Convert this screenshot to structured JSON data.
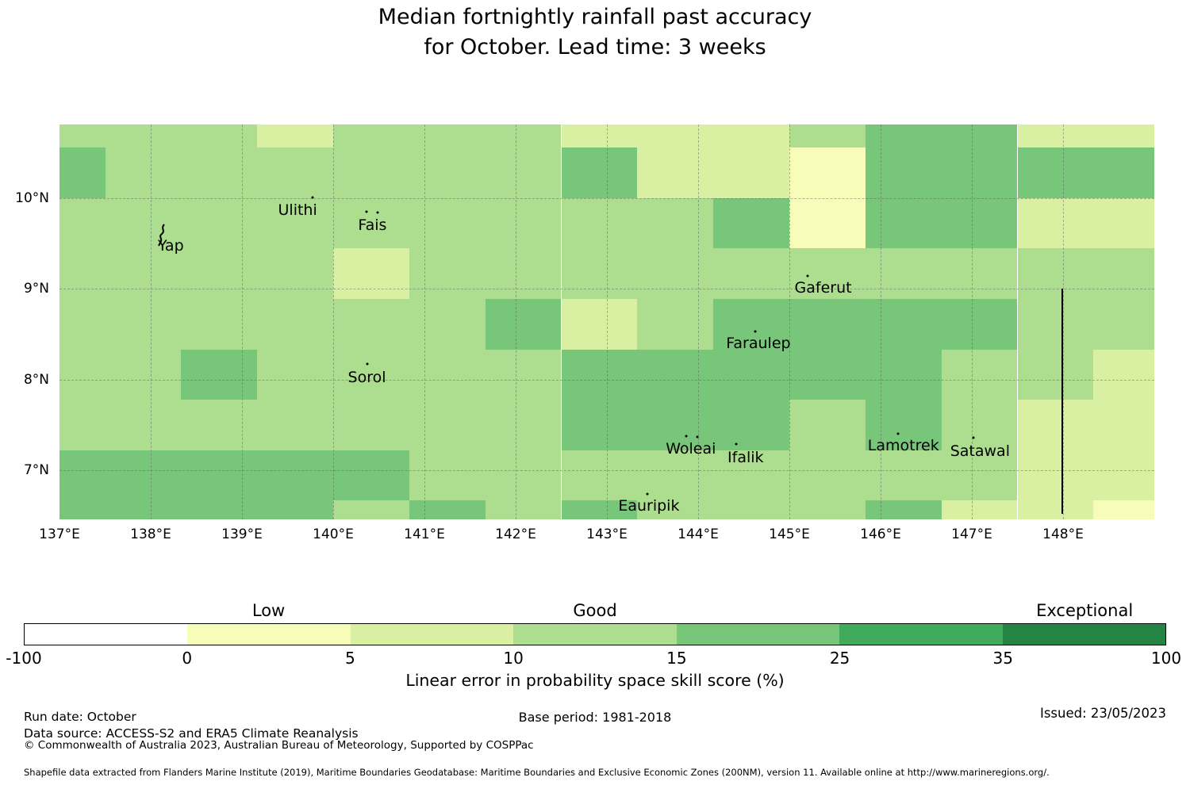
{
  "title": {
    "line1": "Median fortnightly rainfall past accuracy",
    "line2": "for October. Lead time: 3 weeks"
  },
  "chart_data": {
    "type": "heatmap",
    "title": "Median fortnightly rainfall past accuracy for October. Lead time: 3 weeks",
    "region": "Yap / Federated States of Micronesia area",
    "lon_range": [
      137.0,
      149.0
    ],
    "lat_range": [
      10.81,
      6.46
    ],
    "lon_edges": [
      137.0,
      137.5,
      138.333,
      139.167,
      140.0,
      140.833,
      141.667,
      142.5,
      143.333,
      144.167,
      145.0,
      145.833,
      146.667,
      147.5,
      148.333,
      149.0
    ],
    "lat_edges": [
      10.81,
      10.556,
      10.0,
      9.444,
      8.889,
      8.333,
      7.778,
      7.222,
      6.667,
      6.46
    ],
    "bins": {
      "Y": "0-5",
      "P": "5-10",
      "L": "10-15",
      "M": "15-25"
    },
    "bin_colors": {
      "Y": "#f7fcb9",
      "P": "#d9f0a3",
      "L": "#addd8e",
      "M": "#78c679"
    },
    "values": [
      "LLLPLLLPPPLMMPP",
      "MLLLLLLMPPYMMMM",
      "LLLLLLLLLMYMMPP",
      "LLLLPLLLLLLLLLL",
      "LLLLLLMPLMMMMLL",
      "LLMLLLLMMMMMLLP",
      "LLLLLLLMMMLMLPP",
      "MMMMMLLLLLLLLPP",
      "MMMMLMLMLLLMPPY"
    ],
    "grid_lons": [
      138,
      139,
      140,
      141,
      142,
      143,
      144,
      145,
      146,
      147,
      148
    ],
    "grid_lats": [
      7,
      8,
      9,
      10
    ],
    "eez_boundary": {
      "lon": 147.99,
      "lat_top": 9.0,
      "lat_bottom": 6.52
    },
    "islands": [
      {
        "name": "Yap",
        "marker": "islet",
        "lon": 138.13,
        "lat": 9.6,
        "label_lon": 138.22,
        "label_lat": 9.47
      },
      {
        "name": "Ulithi",
        "marker": "dot",
        "lon": 139.77,
        "lat": 10.01,
        "label_lon": 139.61,
        "label_lat": 9.87
      },
      {
        "name": "Fais",
        "marker": "dots2",
        "lon": 140.43,
        "lat": 9.85,
        "label_lon": 140.43,
        "label_lat": 9.7
      },
      {
        "name": "Sorol",
        "marker": "dot",
        "lon": 140.37,
        "lat": 8.17,
        "label_lon": 140.37,
        "label_lat": 8.02
      },
      {
        "name": "Gaferut",
        "marker": "dot",
        "lon": 145.2,
        "lat": 9.14,
        "label_lon": 145.37,
        "label_lat": 9.01
      },
      {
        "name": "Faraulep",
        "marker": "dot",
        "lon": 144.63,
        "lat": 8.53,
        "label_lon": 144.66,
        "label_lat": 8.4
      },
      {
        "name": "Woleai",
        "marker": "dots2",
        "lon": 143.93,
        "lat": 7.38,
        "label_lon": 143.92,
        "label_lat": 7.24
      },
      {
        "name": "Ifalik",
        "marker": "dot",
        "lon": 144.42,
        "lat": 7.29,
        "label_lon": 144.52,
        "label_lat": 7.14
      },
      {
        "name": "Eauripik",
        "marker": "dot",
        "lon": 143.44,
        "lat": 6.74,
        "label_lon": 143.46,
        "label_lat": 6.61
      },
      {
        "name": "Lamotrek",
        "marker": "dot",
        "lon": 146.19,
        "lat": 7.4,
        "label_lon": 146.25,
        "label_lat": 7.27
      },
      {
        "name": "Satawal",
        "marker": "dot",
        "lon": 147.02,
        "lat": 7.36,
        "label_lon": 147.09,
        "label_lat": 7.21
      }
    ]
  },
  "map": {
    "x_ticks": [
      {
        "label": "137°E",
        "lon": 137
      },
      {
        "label": "138°E",
        "lon": 138
      },
      {
        "label": "139°E",
        "lon": 139
      },
      {
        "label": "140°E",
        "lon": 140
      },
      {
        "label": "141°E",
        "lon": 141
      },
      {
        "label": "142°E",
        "lon": 142
      },
      {
        "label": "143°E",
        "lon": 143
      },
      {
        "label": "144°E",
        "lon": 144
      },
      {
        "label": "145°E",
        "lon": 145
      },
      {
        "label": "146°E",
        "lon": 146
      },
      {
        "label": "147°E",
        "lon": 147
      },
      {
        "label": "148°E",
        "lon": 148
      }
    ],
    "y_ticks": [
      {
        "label": "10°N",
        "lat": 10
      },
      {
        "label": "9°N",
        "lat": 9
      },
      {
        "label": "8°N",
        "lat": 8
      },
      {
        "label": "7°N",
        "lat": 7
      }
    ]
  },
  "colorbar": {
    "tick_labels": [
      "-100",
      "0",
      "5",
      "10",
      "15",
      "25",
      "35",
      "100"
    ],
    "segments": [
      {
        "bin": "-100-0",
        "color": "#ffffff"
      },
      {
        "bin": "0-5",
        "color": "#f7fcb9"
      },
      {
        "bin": "5-10",
        "color": "#d9f0a3"
      },
      {
        "bin": "10-15",
        "color": "#addd8e"
      },
      {
        "bin": "15-25",
        "color": "#78c679"
      },
      {
        "bin": "25-35",
        "color": "#41ab5d"
      },
      {
        "bin": "35-100",
        "color": "#238443"
      }
    ],
    "category_labels": [
      {
        "text": "Low",
        "segment": 1
      },
      {
        "text": "Good",
        "segment": 3
      },
      {
        "text": "Exceptional",
        "segment": 6
      }
    ],
    "caption": "Linear error in probability space skill score (%)"
  },
  "footer": {
    "run_date": "Run date: October",
    "base_period": "Base period: 1981-2018",
    "issued": "Issued: 23/05/2023",
    "data_source": "Data source: ACCESS-S2 and ERA5 Climate Reanalysis",
    "copyright": "© Commonwealth of Australia 2023, Australian Bureau of Meteorology, Supported by COSPPac",
    "shapefile": "Shapefile data extracted from Flanders Marine Institute (2019), Maritime Boundaries Geodatabase: Maritime Boundaries and Exclusive Economic Zones (200NM), version 11. Available online at http://www.marineregions.org/."
  }
}
